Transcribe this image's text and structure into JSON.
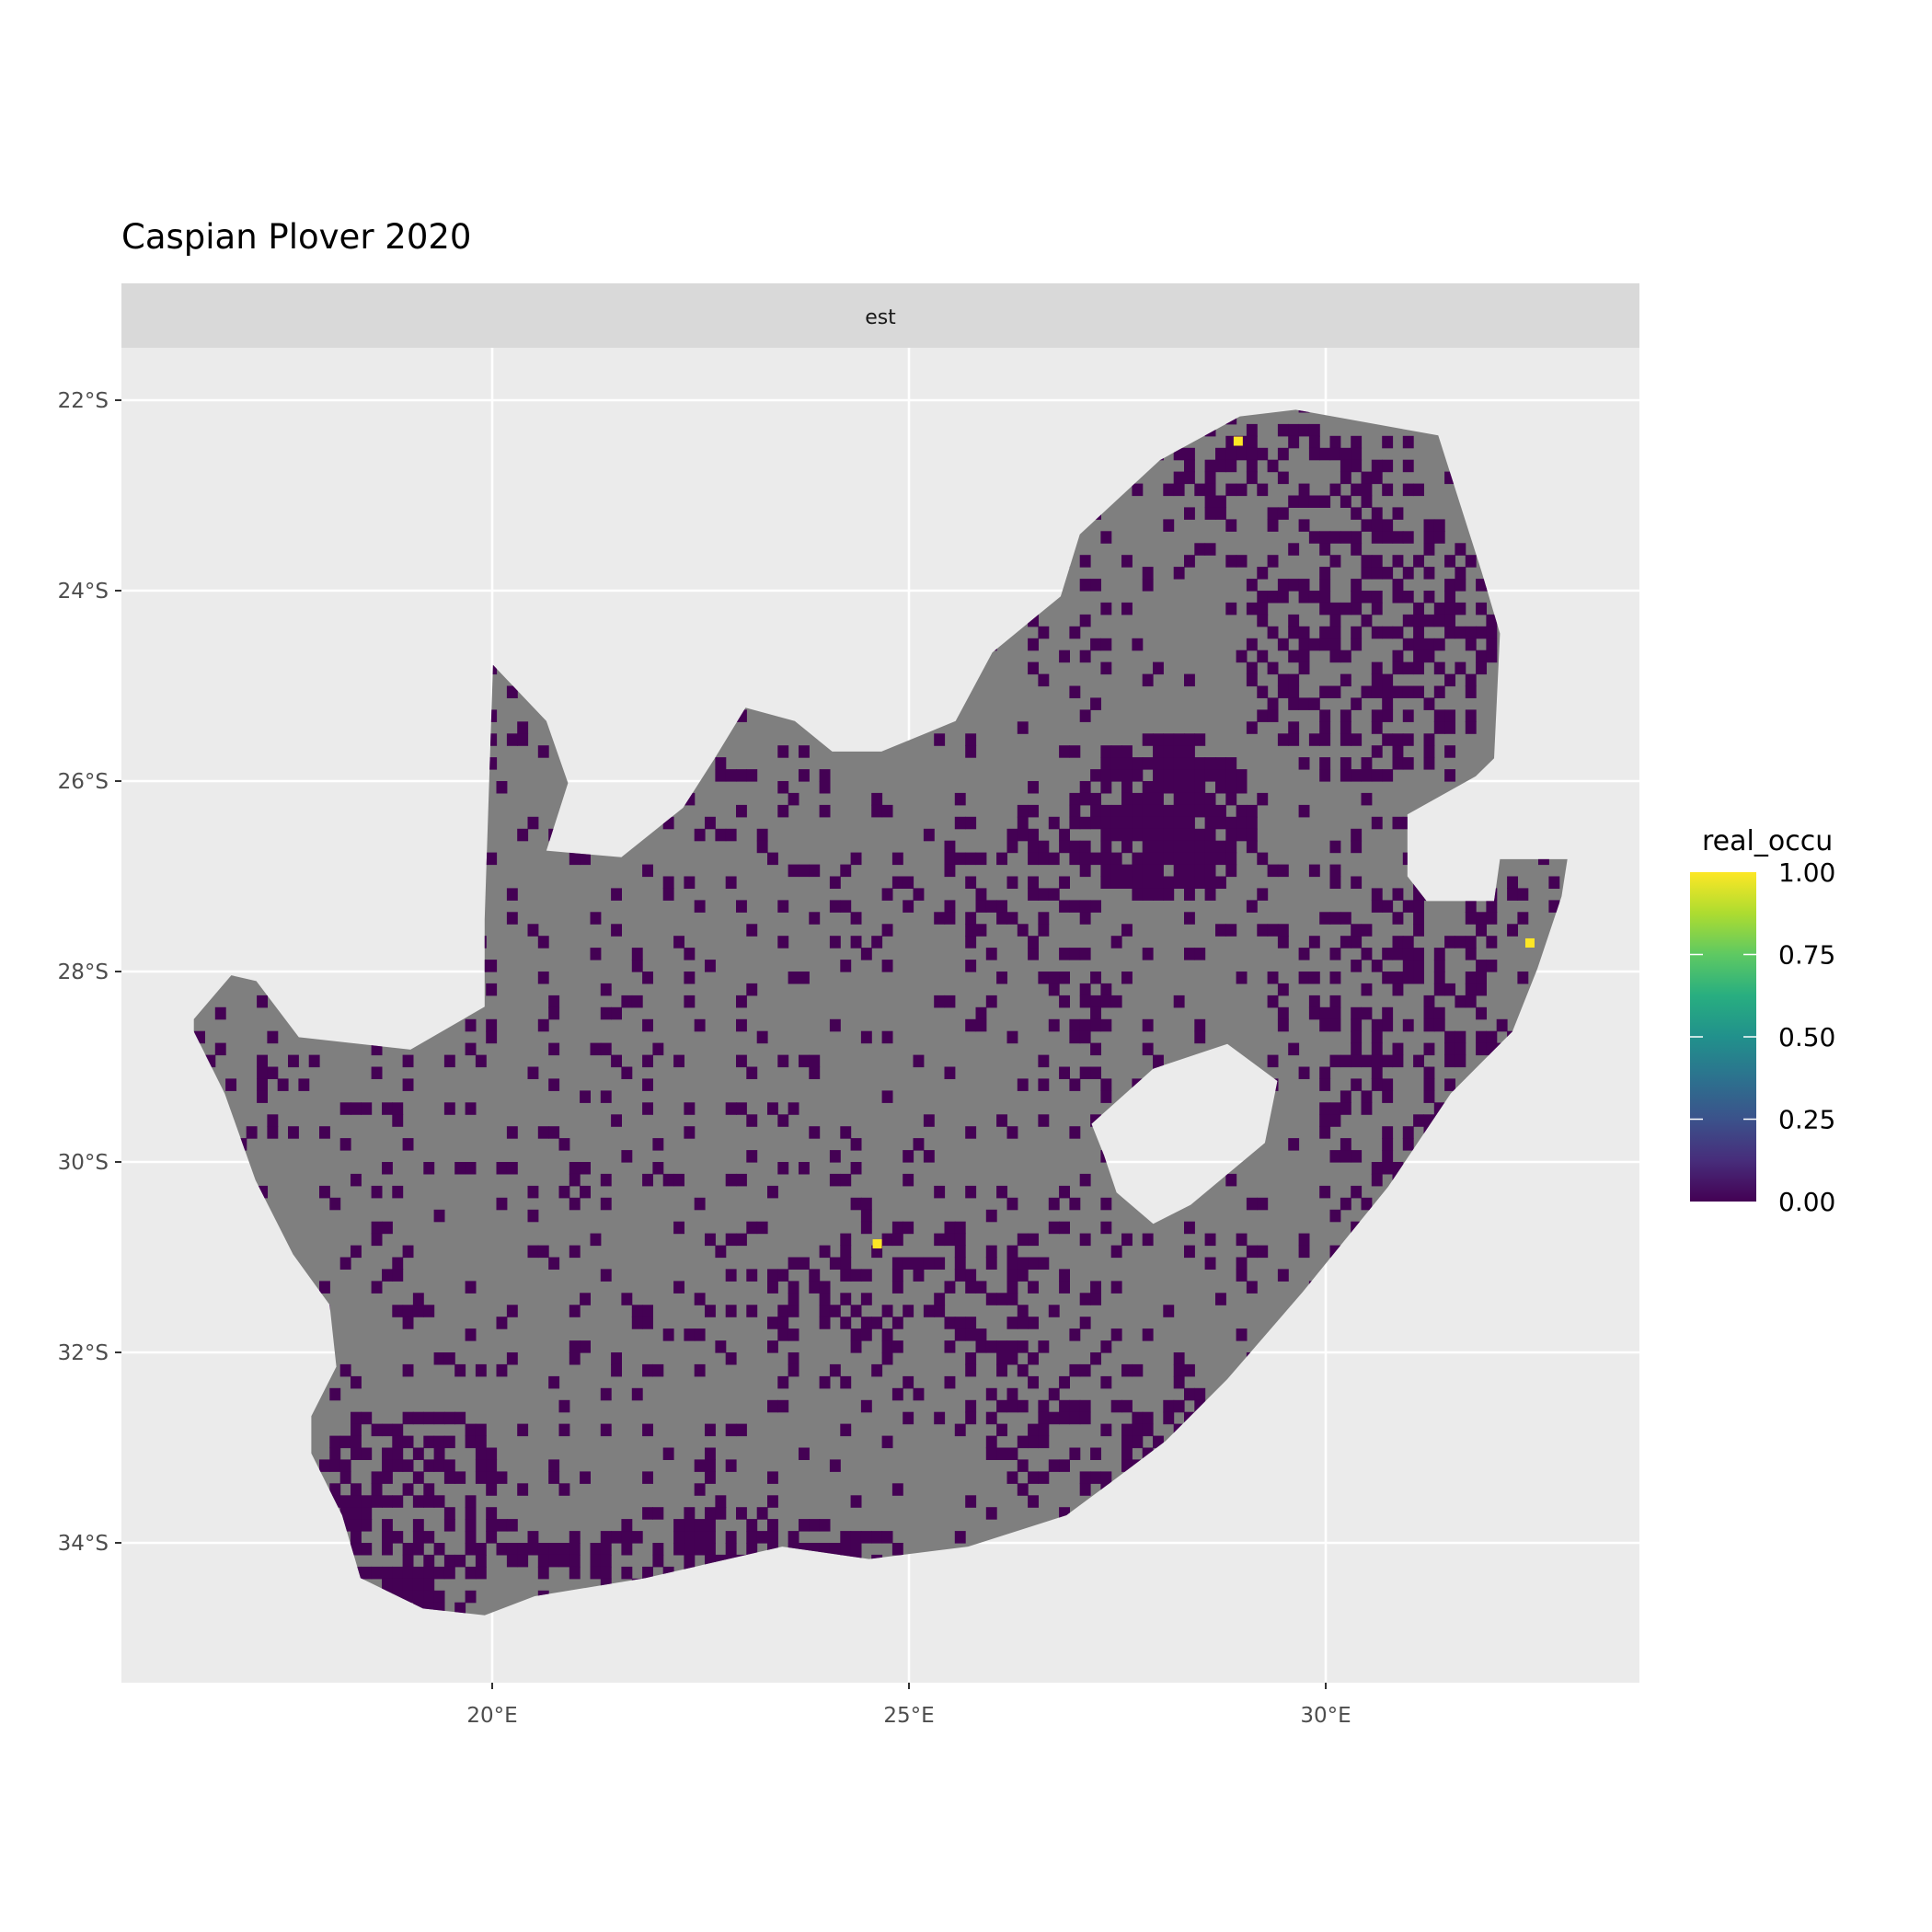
{
  "chart_data": {
    "type": "heatmap",
    "title": "Caspian Plover 2020",
    "facet_label": "est",
    "xlabel": "",
    "ylabel": "",
    "x_ticks": [
      {
        "value": 20,
        "label": "20°E"
      },
      {
        "value": 25,
        "label": "25°E"
      },
      {
        "value": 30,
        "label": "30°E"
      }
    ],
    "y_ticks": [
      {
        "value": 22,
        "label": "22°S"
      },
      {
        "value": 24,
        "label": "24°S"
      },
      {
        "value": 26,
        "label": "26°S"
      },
      {
        "value": 28,
        "label": "28°S"
      },
      {
        "value": 30,
        "label": "30°S"
      },
      {
        "value": 32,
        "label": "32°S"
      },
      {
        "value": 34,
        "label": "34°S"
      }
    ],
    "xlim": [
      15.55,
      33.76
    ],
    "ylim_south": [
      21.45,
      35.47
    ],
    "grid": true,
    "legend": {
      "title": "real_occu",
      "position": "right",
      "scale": "viridis",
      "range": [
        0,
        1
      ],
      "ticks": [
        {
          "value": 1,
          "label": "1.00"
        },
        {
          "value": 0.75,
          "label": "0.75"
        },
        {
          "value": 0.5,
          "label": "0.50"
        },
        {
          "value": 0.25,
          "label": "0.25"
        },
        {
          "value": 0,
          "label": "0.00"
        }
      ]
    },
    "colors": {
      "na_cell": "#7f7f7f",
      "zero": "#440154",
      "one": "#fde725",
      "panel": "#ebebeb",
      "strip": "#d9d9d9"
    },
    "outline_lonlat_south": [
      [
        16.42,
        28.5
      ],
      [
        16.87,
        28.04
      ],
      [
        17.17,
        28.1
      ],
      [
        17.68,
        28.69
      ],
      [
        19.02,
        28.82
      ],
      [
        19.91,
        28.37
      ],
      [
        19.91,
        27.45
      ],
      [
        20.01,
        24.78
      ],
      [
        20.65,
        25.37
      ],
      [
        20.91,
        26.02
      ],
      [
        20.65,
        26.73
      ],
      [
        21.55,
        26.8
      ],
      [
        22.29,
        26.28
      ],
      [
        22.67,
        25.76
      ],
      [
        23.04,
        25.23
      ],
      [
        23.63,
        25.37
      ],
      [
        24.08,
        25.69
      ],
      [
        24.67,
        25.69
      ],
      [
        25.56,
        25.37
      ],
      [
        26.0,
        24.65
      ],
      [
        26.82,
        24.06
      ],
      [
        27.05,
        23.41
      ],
      [
        28.01,
        22.63
      ],
      [
        28.97,
        22.17
      ],
      [
        29.64,
        22.1
      ],
      [
        30.46,
        22.23
      ],
      [
        31.35,
        22.37
      ],
      [
        31.87,
        23.8
      ],
      [
        32.09,
        24.45
      ],
      [
        32.02,
        25.76
      ],
      [
        31.8,
        25.95
      ],
      [
        30.98,
        26.35
      ],
      [
        30.98,
        27.0
      ],
      [
        31.21,
        27.26
      ],
      [
        32.02,
        27.26
      ],
      [
        32.09,
        26.82
      ],
      [
        32.9,
        26.82
      ],
      [
        32.83,
        27.21
      ],
      [
        32.54,
        27.97
      ],
      [
        32.24,
        28.63
      ],
      [
        31.5,
        29.28
      ],
      [
        30.75,
        30.26
      ],
      [
        29.72,
        31.37
      ],
      [
        28.82,
        32.28
      ],
      [
        28.08,
        32.93
      ],
      [
        27.49,
        33.32
      ],
      [
        26.89,
        33.71
      ],
      [
        25.71,
        34.04
      ],
      [
        24.52,
        34.17
      ],
      [
        23.48,
        34.04
      ],
      [
        21.84,
        34.37
      ],
      [
        20.51,
        34.56
      ],
      [
        19.91,
        34.76
      ],
      [
        19.17,
        34.69
      ],
      [
        18.42,
        34.37
      ],
      [
        18.2,
        33.71
      ],
      [
        17.83,
        33.06
      ],
      [
        17.83,
        32.67
      ],
      [
        18.13,
        32.15
      ],
      [
        18.05,
        31.5
      ],
      [
        17.61,
        30.97
      ],
      [
        17.16,
        30.19
      ],
      [
        16.79,
        29.28
      ],
      [
        16.42,
        28.63
      ]
    ],
    "hole_lonlat_south": [
      [
        27.19,
        29.6
      ],
      [
        27.93,
        29.02
      ],
      [
        28.82,
        28.76
      ],
      [
        29.42,
        29.15
      ],
      [
        29.27,
        29.8
      ],
      [
        28.38,
        30.45
      ],
      [
        27.93,
        30.65
      ],
      [
        27.49,
        30.32
      ],
      [
        27.34,
        29.93
      ]
    ],
    "occupied_zero_regions": [
      {
        "lon": 28.0,
        "lat": 26.3,
        "rlon": 1.2,
        "rlat": 0.9,
        "density": 0.95
      },
      {
        "lon": 30.5,
        "lat": 24.5,
        "rlon": 1.5,
        "rlat": 1.5,
        "density": 0.5
      },
      {
        "lon": 29.5,
        "lat": 22.7,
        "rlon": 1.5,
        "rlat": 0.6,
        "density": 0.45
      },
      {
        "lon": 31.0,
        "lat": 28.8,
        "rlon": 1.2,
        "rlat": 1.8,
        "density": 0.5
      },
      {
        "lon": 27.0,
        "lat": 28.2,
        "rlon": 0.5,
        "rlat": 0.5,
        "density": 0.6
      },
      {
        "lon": 19.0,
        "lat": 33.6,
        "rlon": 1.2,
        "rlat": 1.2,
        "density": 0.6
      },
      {
        "lon": 22.5,
        "lat": 34.0,
        "rlon": 2.5,
        "rlat": 0.4,
        "density": 0.6
      },
      {
        "lon": 25.0,
        "lat": 31.5,
        "rlon": 2.0,
        "rlat": 1.0,
        "density": 0.4
      },
      {
        "lon": 27.0,
        "lat": 32.5,
        "rlon": 1.5,
        "rlat": 1.0,
        "density": 0.4
      },
      {
        "lon": 26.3,
        "lat": 27.0,
        "rlon": 1.0,
        "rlat": 1.0,
        "density": 0.35
      }
    ],
    "high_occupancy_cells": [
      {
        "lon": 28.95,
        "lat": 22.43,
        "value": 1.0
      },
      {
        "lon": 24.62,
        "lat": 30.86,
        "value": 1.0
      },
      {
        "lon": 32.45,
        "lat": 27.7,
        "value": 1.0
      }
    ]
  }
}
